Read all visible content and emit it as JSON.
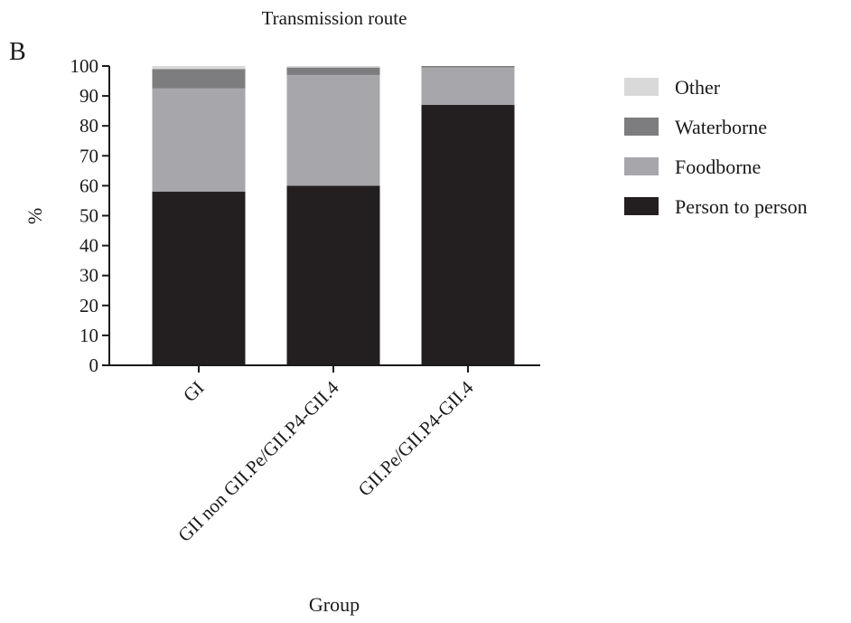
{
  "panel_label": "B",
  "chart_data": {
    "type": "bar",
    "stacked": true,
    "title": "Transmission route",
    "xlabel": "Group",
    "ylabel": "%",
    "ylim": [
      0,
      100
    ],
    "yticks": [
      0,
      10,
      20,
      30,
      40,
      50,
      60,
      70,
      80,
      90,
      100
    ],
    "categories": [
      "GI",
      "GII non GII.Pe/GII.P4-GII.4",
      "GII.Pe/GII.P4-GII.4"
    ],
    "series": [
      {
        "name": "Person to person",
        "color": "#231f20",
        "values": [
          58,
          60,
          87
        ]
      },
      {
        "name": "Foodborne",
        "color": "#a7a6aa",
        "values": [
          34.5,
          37,
          12.5
        ]
      },
      {
        "name": "Waterborne",
        "color": "#7d7d7f",
        "values": [
          6.5,
          2.5,
          0.5
        ]
      },
      {
        "name": "Other",
        "color": "#d9d9d9",
        "values": [
          1,
          0.5,
          0
        ]
      }
    ],
    "legend_position": "right",
    "legend_order": [
      "Other",
      "Waterborne",
      "Foodborne",
      "Person to person"
    ],
    "grid": false
  }
}
